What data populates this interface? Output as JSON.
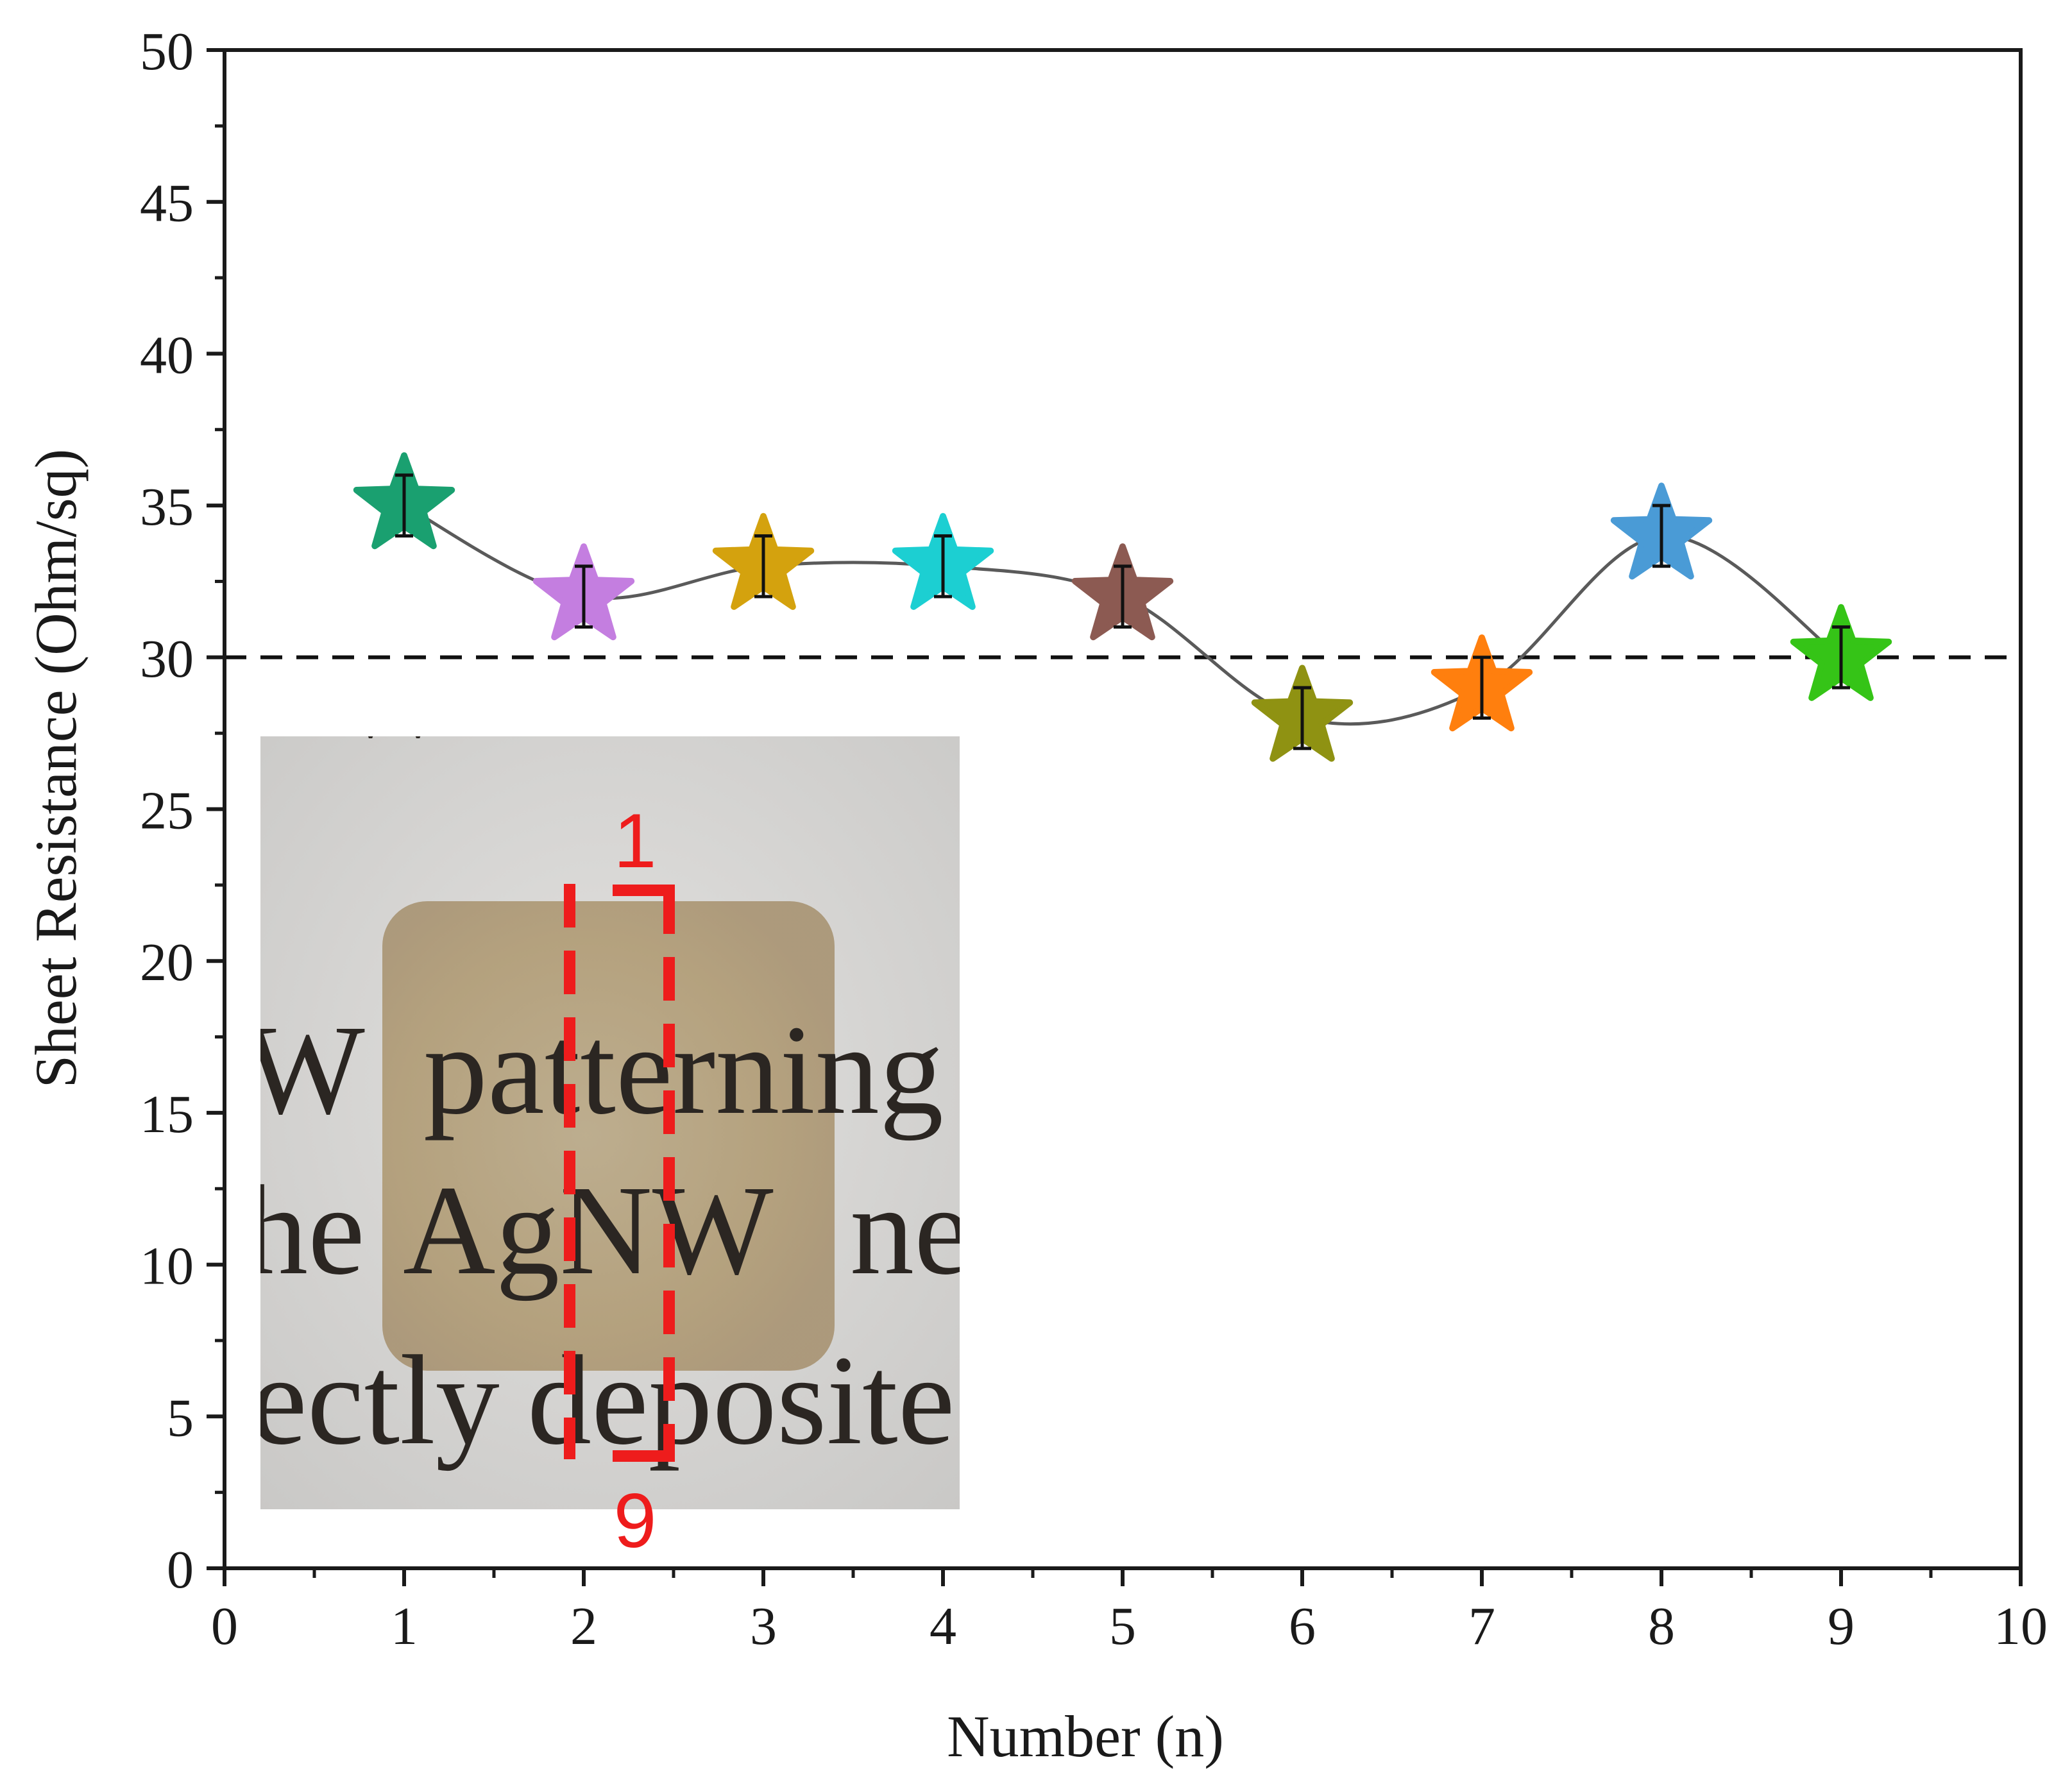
{
  "chart_data": {
    "type": "line",
    "title": "",
    "xlabel": "Number (n)",
    "ylabel": "Sheet Resistance (Ohm/sq)",
    "xlim": [
      0,
      10
    ],
    "ylim": [
      0,
      50
    ],
    "x_ticks": [
      "0",
      "1",
      "2",
      "3",
      "4",
      "5",
      "6",
      "7",
      "8",
      "9",
      "10"
    ],
    "y_ticks": [
      "0",
      "5",
      "10",
      "15",
      "20",
      "25",
      "30",
      "35",
      "40",
      "45",
      "50"
    ],
    "grid": false,
    "series": [
      {
        "name": "Sheet resistance",
        "marker": "star",
        "line": "smooth",
        "line_color": "#5a5a5a",
        "x": [
          1,
          2,
          3,
          4,
          5,
          6,
          7,
          8,
          9
        ],
        "values": [
          35,
          32,
          33,
          33,
          32,
          28,
          29,
          34,
          30
        ],
        "error": [
          1,
          1,
          1,
          1,
          1,
          1,
          1,
          1,
          1
        ],
        "colors": [
          "#1aa070",
          "#c47ee0",
          "#d4a20e",
          "#1ccfd2",
          "#8c5a52",
          "#8f9212",
          "#ff7f0e",
          "#4a9bd6",
          "#35c417"
        ]
      }
    ],
    "reference_line": {
      "y": 30,
      "style": "dashed",
      "color": "#111111"
    },
    "inset": {
      "description": "photo",
      "words": [
        "W",
        "patterning",
        "he",
        "AgNW",
        "ne",
        "ectly",
        "deposite"
      ],
      "markers": {
        "top": "1",
        "bottom": "9"
      },
      "marker_color": "#ee1c1c"
    }
  }
}
